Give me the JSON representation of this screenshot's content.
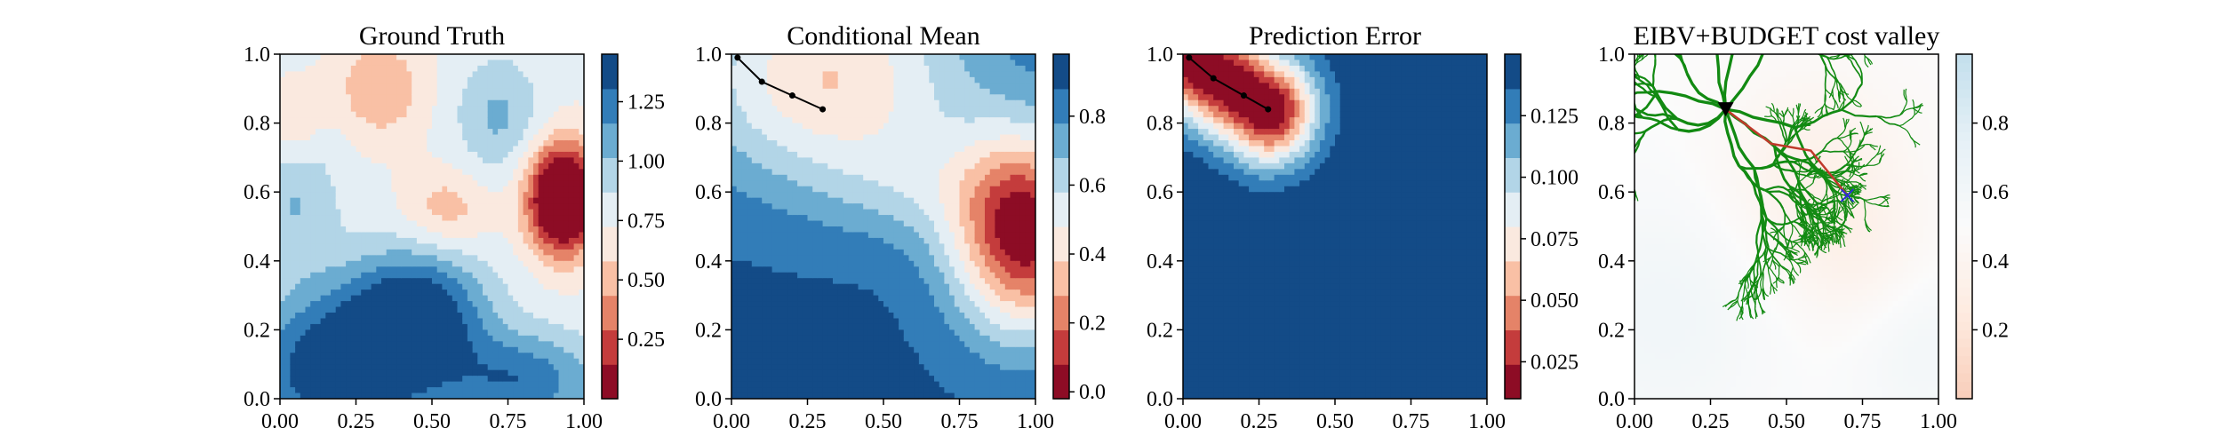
{
  "colors": {
    "rdbu": [
      "#67001f",
      "#b2182b",
      "#d6604d",
      "#f4a582",
      "#fddbc7",
      "#f7f7f7",
      "#d1e5f0",
      "#92c5de",
      "#4393c3",
      "#2166ac",
      "#053061"
    ],
    "path_black": "#000000",
    "tree_green": "#128a12",
    "path_red": "#c0392b",
    "target_blue": "#2b2bd9"
  },
  "chart_data": [
    {
      "type": "heatmap",
      "title": "Ground Truth",
      "xlim": [
        0,
        1
      ],
      "ylim": [
        0,
        1
      ],
      "xticks": [
        "0.00",
        "0.25",
        "0.50",
        "0.75",
        "1.00"
      ],
      "yticks": [
        "0.0",
        "0.2",
        "0.4",
        "0.6",
        "0.8",
        "1.0"
      ],
      "colorbar": {
        "min": 0.0,
        "max": 1.45,
        "ticks": [
          0.25,
          0.5,
          0.75,
          1.0,
          1.25
        ],
        "tick_labels": [
          "0.25",
          "0.50",
          "0.75",
          "1.00",
          "1.25"
        ],
        "levels": 10,
        "colormap": "RdBu"
      },
      "features": [
        {
          "kind": "low",
          "x": 0.93,
          "y": 0.58,
          "value": 0.05
        },
        {
          "kind": "low",
          "x": 0.33,
          "y": 0.9,
          "value": 0.68
        },
        {
          "kind": "low",
          "x": 0.55,
          "y": 0.55,
          "value": 0.8
        },
        {
          "kind": "high",
          "x": 0.2,
          "y": 0.08,
          "value": 1.45
        },
        {
          "kind": "high",
          "x": 0.46,
          "y": 0.24,
          "value": 1.4
        },
        {
          "kind": "high",
          "x": 0.8,
          "y": 0.05,
          "value": 1.2
        }
      ]
    },
    {
      "type": "heatmap",
      "title": "Conditional Mean",
      "xlim": [
        0,
        1
      ],
      "ylim": [
        0,
        1
      ],
      "xticks": [
        "0.00",
        "0.25",
        "0.50",
        "0.75",
        "1.00"
      ],
      "yticks": [
        "0.0",
        "0.2",
        "0.4",
        "0.6",
        "0.8",
        "1.0"
      ],
      "colorbar": {
        "min": -0.02,
        "max": 0.98,
        "ticks": [
          0.0,
          0.2,
          0.4,
          0.6,
          0.8
        ],
        "tick_labels": [
          "0.0",
          "0.2",
          "0.4",
          "0.6",
          "0.8"
        ],
        "levels": 10,
        "colormap": "RdBu"
      },
      "features": [
        {
          "kind": "low",
          "x": 0.97,
          "y": 0.5,
          "value": -0.02
        },
        {
          "kind": "low",
          "x": 0.37,
          "y": 0.87,
          "value": 0.62
        }
      ],
      "path": {
        "x": [
          0.02,
          0.1,
          0.2,
          0.3
        ],
        "y": [
          0.99,
          0.92,
          0.88,
          0.84
        ]
      }
    },
    {
      "type": "heatmap",
      "title": "Prediction Error",
      "xlim": [
        0,
        1
      ],
      "ylim": [
        0,
        1
      ],
      "xticks": [
        "0.00",
        "0.25",
        "0.50",
        "0.75",
        "1.00"
      ],
      "yticks": [
        "0.0",
        "0.2",
        "0.4",
        "0.6",
        "0.8",
        "1.0"
      ],
      "colorbar": {
        "min": 0.01,
        "max": 0.15,
        "ticks": [
          0.025,
          0.05,
          0.075,
          0.1,
          0.125
        ],
        "tick_labels": [
          "0.025",
          "0.050",
          "0.075",
          "0.100",
          "0.125"
        ],
        "levels": 10,
        "colormap": "RdBu"
      },
      "features": [
        {
          "kind": "low-segment",
          "x": [
            0.02,
            0.28
          ],
          "y": [
            0.99,
            0.84
          ],
          "value": 0.01
        }
      ],
      "path": {
        "x": [
          0.02,
          0.1,
          0.2,
          0.28
        ],
        "y": [
          0.99,
          0.93,
          0.88,
          0.84
        ]
      }
    },
    {
      "type": "heatmap",
      "title": "EIBV+BUDGET cost valley",
      "xlim": [
        0,
        1
      ],
      "ylim": [
        0,
        1
      ],
      "xticks": [
        "0.00",
        "0.25",
        "0.50",
        "0.75",
        "1.00"
      ],
      "yticks": [
        "0.0",
        "0.2",
        "0.4",
        "0.6",
        "0.8",
        "1.0"
      ],
      "colorbar": {
        "min": 0.0,
        "max": 1.0,
        "ticks": [
          0.2,
          0.4,
          0.6,
          0.8
        ],
        "tick_labels": [
          "0.2",
          "0.4",
          "0.6",
          "0.8"
        ],
        "colormap": "RdBu (light)"
      },
      "current_location": {
        "x": 0.3,
        "y": 0.84
      },
      "target": {
        "x": 0.7,
        "y": 0.59
      },
      "path": {
        "x": [
          0.3,
          0.45,
          0.58,
          0.7
        ],
        "y": [
          0.84,
          0.74,
          0.72,
          0.59
        ]
      }
    }
  ]
}
